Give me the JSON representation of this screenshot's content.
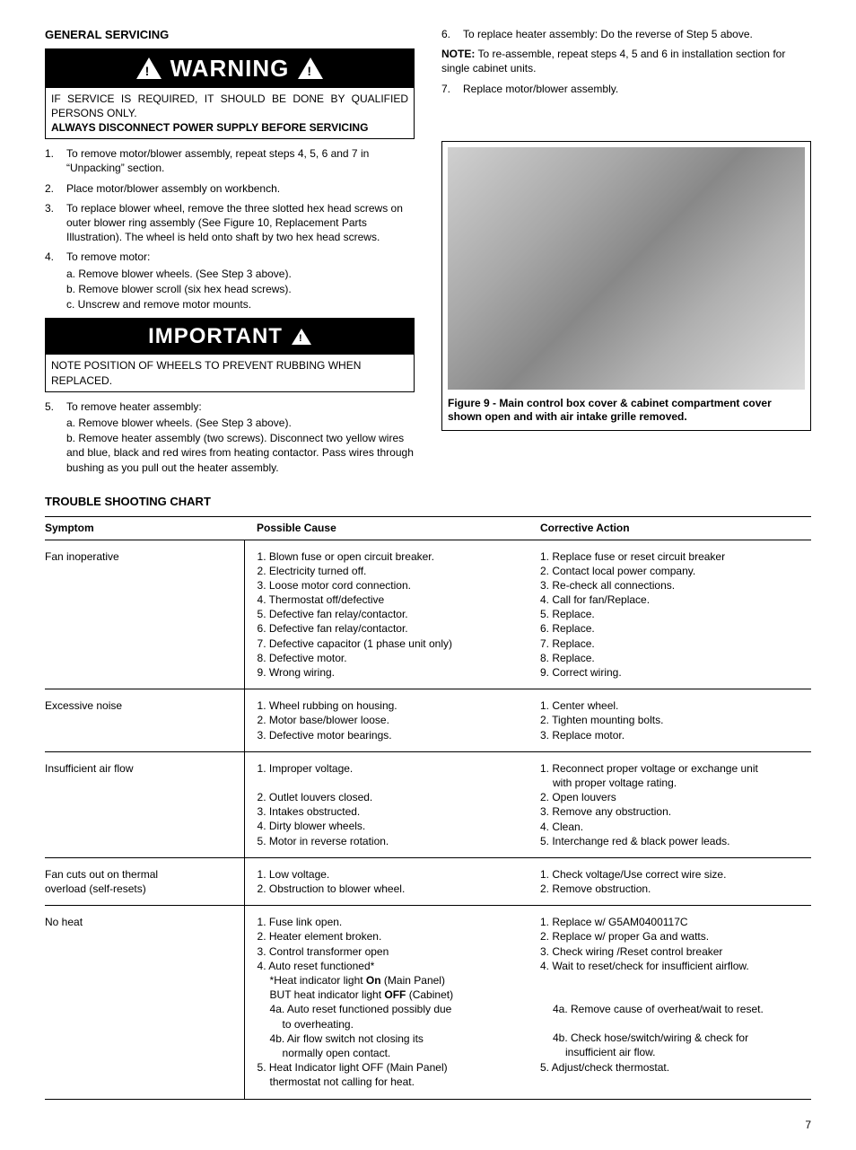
{
  "left": {
    "section_title": "GENERAL SERVICING",
    "warning_label": "WARNING",
    "warning_body_1": "IF SERVICE IS REQUIRED, IT SHOULD BE DONE BY QUALIFIED PERSONS ONLY.",
    "warning_body_2": "ALWAYS DISCONNECT POWER SUPPLY BEFORE SERVICING",
    "steps": [
      {
        "num": "1.",
        "text": "To remove motor/blower assembly, repeat steps 4, 5, 6 and 7 in “Unpacking” section."
      },
      {
        "num": "2.",
        "text": "Place motor/blower assembly on workbench."
      },
      {
        "num": "3.",
        "text": "To replace blower wheel, remove the three slotted hex head screws on outer blower ring assembly (See Figure 10, Replacement Parts Illustration).  The wheel is held onto shaft by two hex head screws."
      },
      {
        "num": "4.",
        "text": "To remove motor:",
        "sub": [
          "a. Remove blower wheels. (See Step 3 above).",
          "b. Remove blower scroll (six hex head screws).",
          "c. Unscrew and remove motor mounts."
        ]
      }
    ],
    "important_label": "IMPORTANT",
    "important_body": "NOTE POSITION OF WHEELS TO PREVENT RUBBING WHEN REPLACED.",
    "steps2": [
      {
        "num": "5.",
        "text": "To remove heater assembly:",
        "sub": [
          "a. Remove blower wheels. (See Step 3 above).",
          "b. Remove heater assembly (two screws).  Disconnect two yellow wires and blue, black and red wires from heating contactor.  Pass wires through bushing as you pull out the heater assembly."
        ]
      }
    ]
  },
  "right": {
    "steps": [
      {
        "num": "6.",
        "text": "To replace heater assembly: Do the reverse of Step 5 above."
      }
    ],
    "note_prefix": "NOTE:",
    "note_text": " To re-assemble, repeat steps 4, 5 and 6 in installation section for single cabinet units.",
    "steps2": [
      {
        "num": "7.",
        "text": "Replace motor/blower assembly."
      }
    ],
    "figure_caption": "Figure 9 - Main control box cover & cabinet compartment cover shown open and with air intake grille removed."
  },
  "trouble": {
    "title": "TROUBLE SHOOTING CHART",
    "headers": {
      "symptom": "Symptom",
      "cause": "Possible Cause",
      "action": "Corrective Action"
    },
    "rows": [
      {
        "symptom": [
          "Fan inoperative"
        ],
        "cause": [
          "1. Blown fuse or open circuit breaker.",
          "2. Electricity turned off.",
          "3. Loose motor cord connection.",
          "4. Thermostat off/defective",
          "5. Defective fan relay/contactor.",
          "6. Defective fan relay/contactor.",
          "7. Defective capacitor (1 phase unit only)",
          "8. Defective motor.",
          "9. Wrong wiring."
        ],
        "action": [
          "1. Replace fuse or reset circuit breaker",
          "2. Contact local power company.",
          "3. Re-check all connections.",
          "4. Call for fan/Replace.",
          "5. Replace.",
          "6. Replace.",
          "7. Replace.",
          "8. Replace.",
          "9. Correct wiring."
        ]
      },
      {
        "symptom": [
          "Excessive noise"
        ],
        "cause": [
          "1. Wheel rubbing on housing.",
          "2. Motor base/blower loose.",
          "3. Defective motor bearings."
        ],
        "action": [
          "1. Center wheel.",
          "2. Tighten mounting bolts.",
          "3. Replace motor."
        ]
      },
      {
        "symptom": [
          "Insufficient air flow"
        ],
        "cause": [
          {
            "text": "1. Improper voltage.",
            "gap": true
          },
          "2. Outlet louvers closed.",
          "3. Intakes obstructed.",
          "4. Dirty blower wheels.",
          "5. Motor in reverse rotation."
        ],
        "action": [
          "1. Reconnect proper voltage or exchange unit",
          {
            "text": "with proper voltage rating.",
            "indent": 1
          },
          "2. Open louvers",
          "3. Remove any obstruction.",
          "4. Clean.",
          "5. Interchange red & black power leads."
        ]
      },
      {
        "symptom": [
          "Fan cuts out on thermal",
          "overload (self-resets)"
        ],
        "cause": [
          "1. Low voltage.",
          "2. Obstruction to blower wheel."
        ],
        "action": [
          "1. Check voltage/Use correct wire size.",
          "2. Remove obstruction."
        ]
      },
      {
        "symptom": [
          "No heat"
        ],
        "cause": [
          "1. Fuse link open.",
          "2. Heater element broken.",
          "3. Control transformer open",
          "4. Auto reset functioned*",
          {
            "html": "*Heat indicator light <b>On</b> (Main Panel)",
            "indent": 1
          },
          {
            "html": "BUT heat indicator light <b>OFF</b> (Cabinet)",
            "indent": 1
          },
          {
            "text": "4a. Auto reset functioned possibly due",
            "indent": 1
          },
          {
            "text": "to overheating.",
            "indent": 2
          },
          {
            "text": "4b. Air flow switch not closing its",
            "indent": 1
          },
          {
            "text": "normally open contact.",
            "indent": 2
          },
          "5. Heat Indicator light OFF (Main Panel)",
          {
            "text": "thermostat not calling for heat.",
            "indent": 1
          }
        ],
        "action": [
          "1. Replace w/ G5AM0400117C",
          "2. Replace w/ proper Ga and watts.",
          "3. Check wiring /Reset control breaker",
          {
            "text": "4. Wait to reset/check for insufficient airflow.",
            "gap2": true
          },
          {
            "text": "4a. Remove cause of overheat/wait to reset.",
            "indent": 1,
            "gap": true
          },
          {
            "text": "4b. Check hose/switch/wiring & check for",
            "indent": 1
          },
          {
            "text": "insufficient air flow.",
            "indent": 2
          },
          "5. Adjust/check thermostat."
        ]
      }
    ]
  },
  "page_number": "7"
}
